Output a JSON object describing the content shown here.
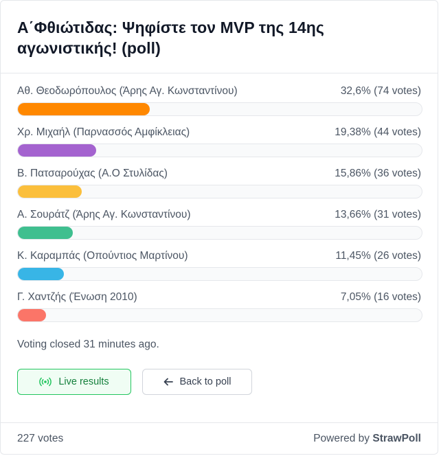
{
  "poll": {
    "title": "Α΄Φθιώτιδας: Ψηφίστε τον MVP της 14ης αγωνιστικής! (poll)",
    "options": [
      {
        "label": "Αθ. Θεοδωρόπουλος (Άρης Αγ. Κωνσταντίνου)",
        "result": "32,6% (74 votes)",
        "percent": 32.6,
        "color": "#ff8800"
      },
      {
        "label": "Χρ. Μιχαήλ (Παρνασσός Αμφίκλειας)",
        "result": "19,38% (44 votes)",
        "percent": 19.38,
        "color": "#a463cf"
      },
      {
        "label": "Β. Πατσαρούχας (Α.Ο Στυλίδας)",
        "result": "15,86% (36 votes)",
        "percent": 15.86,
        "color": "#fbbf3c"
      },
      {
        "label": "Α. Σουράτζ (Άρης Αγ. Κωνσταντίνου)",
        "result": "13,66% (31 votes)",
        "percent": 13.66,
        "color": "#3fbf8f"
      },
      {
        "label": "Κ. Καραμπάς (Οπούντιος Μαρτίνου)",
        "result": "11,45% (26 votes)",
        "percent": 11.45,
        "color": "#38b5e6"
      },
      {
        "label": "Γ. Χαντζής (Ένωση 2010)",
        "result": "7,05% (16 votes)",
        "percent": 7.05,
        "color": "#fb7568"
      }
    ],
    "status": "Voting closed 31 minutes ago.",
    "live_results_label": "Live results",
    "back_label": "Back to poll",
    "total_votes": "227 votes",
    "powered_prefix": "Powered by ",
    "powered_brand": "StrawPoll"
  }
}
